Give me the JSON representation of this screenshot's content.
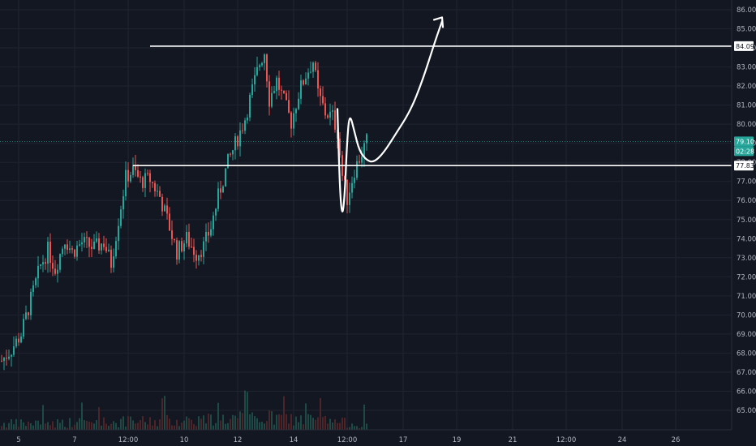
{
  "chart_data": {
    "type": "candlestick",
    "colors": {
      "background": "#131722",
      "grid": "#1f2430",
      "up": "#26a69a",
      "down": "#ef5350",
      "axis_text": "#b2b5be",
      "drawing": "#ffffff",
      "price_line": "#26a69a",
      "volume_up": "#1d4a45",
      "volume_down": "#4d2528"
    },
    "y_axis": {
      "min": 65.0,
      "max": 86.0,
      "position": "right"
    },
    "y_ticks": [
      "86.00",
      "85.00",
      "84.00",
      "83.00",
      "82.00",
      "81.00",
      "80.00",
      "79.00",
      "78.00",
      "77.00",
      "76.00",
      "75.00",
      "74.00",
      "73.00",
      "72.00",
      "71.00",
      "70.00",
      "69.00",
      "68.00",
      "67.00",
      "66.00",
      "65.00"
    ],
    "x_ticks": [
      "5",
      "7",
      "12:00",
      "10",
      "12",
      "14",
      "12:00",
      "17",
      "19",
      "21",
      "12:00",
      "24",
      "26"
    ],
    "x_tick_index": [
      7,
      30,
      52,
      75,
      97,
      120,
      142,
      165,
      187,
      210,
      232,
      255,
      277
    ],
    "bar_count": 290,
    "price_path": [
      [
        0,
        67.6
      ],
      [
        4,
        68.2
      ],
      [
        8,
        69.0
      ],
      [
        12,
        70.8
      ],
      [
        16,
        72.6
      ],
      [
        19,
        73.4
      ],
      [
        22,
        72.4
      ],
      [
        26,
        74.0
      ],
      [
        29,
        73.3
      ],
      [
        33,
        73.8
      ],
      [
        38,
        73.5
      ],
      [
        42,
        73.8
      ],
      [
        45,
        72.7
      ],
      [
        48,
        75.0
      ],
      [
        51,
        77.2
      ],
      [
        54,
        77.6
      ],
      [
        57,
        77.0
      ],
      [
        61,
        77.1
      ],
      [
        65,
        76.2
      ],
      [
        69,
        74.6
      ],
      [
        72,
        73.3
      ],
      [
        76,
        74.0
      ],
      [
        80,
        73.2
      ],
      [
        83,
        73.6
      ],
      [
        86,
        74.6
      ],
      [
        89,
        76.2
      ],
      [
        93,
        78.0
      ],
      [
        98,
        79.6
      ],
      [
        100,
        80.3
      ],
      [
        103,
        81.8
      ],
      [
        106,
        83.2
      ],
      [
        108,
        83.8
      ],
      [
        110,
        81.3
      ],
      [
        113,
        82.3
      ],
      [
        116,
        81.2
      ],
      [
        119,
        80.1
      ],
      [
        122,
        81.6
      ],
      [
        125,
        82.6
      ],
      [
        128,
        83.3
      ],
      [
        130,
        81.6
      ],
      [
        133,
        80.6
      ],
      [
        136,
        80.4
      ],
      [
        138,
        79.6
      ],
      [
        140,
        77.3
      ],
      [
        142,
        76.1
      ],
      [
        145,
        77.6
      ],
      [
        148,
        78.5
      ],
      [
        150,
        79.1
      ]
    ],
    "volume_profile": [
      [
        0,
        0.5
      ],
      [
        60,
        0.7
      ],
      [
        105,
        1.0
      ],
      [
        130,
        0.8
      ],
      [
        150,
        0.4
      ]
    ],
    "horizontal_lines": [
      {
        "value": 84.09,
        "label": "84.09",
        "from_index": 61
      },
      {
        "value": 77.83,
        "label": "77.83",
        "from_index": 54
      }
    ],
    "current_price": {
      "value": 79.1,
      "label": "79.10",
      "countdown": "02:28"
    },
    "drawn_path_points": [
      [
        138,
        80.8
      ],
      [
        139,
        76.5
      ],
      [
        140,
        75.1
      ],
      [
        141,
        76.3
      ],
      [
        142,
        79.2
      ],
      [
        143,
        80.6
      ],
      [
        145,
        79.6
      ],
      [
        147,
        78.6
      ],
      [
        150,
        78.1
      ],
      [
        153,
        78.0
      ],
      [
        157,
        78.5
      ],
      [
        162,
        79.5
      ],
      [
        168,
        80.7
      ],
      [
        173,
        82.3
      ],
      [
        178,
        84.3
      ],
      [
        181,
        85.4
      ]
    ],
    "arrow_head": {
      "tip": [
        181,
        85.6
      ]
    }
  }
}
